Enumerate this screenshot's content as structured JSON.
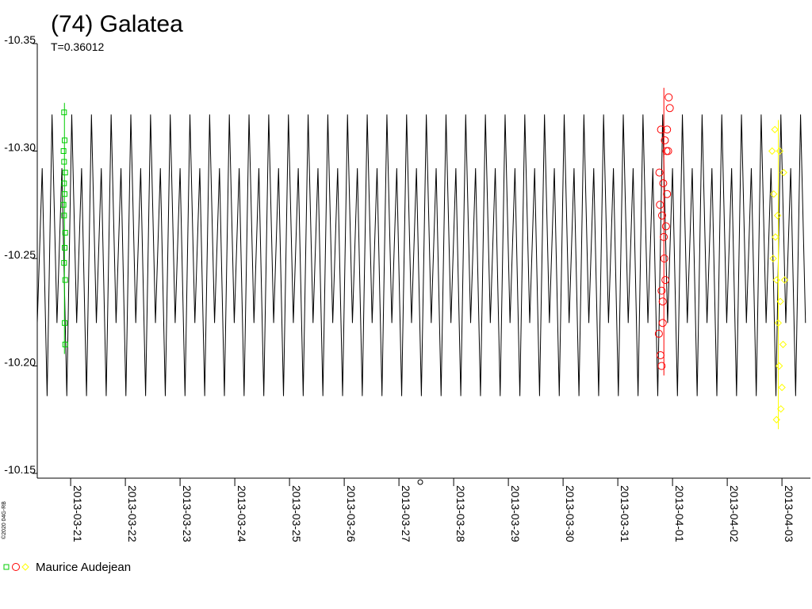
{
  "chart_data": {
    "type": "scatter",
    "title": "(74) Galatea",
    "subtitle": "T=0.36012",
    "observer": "Maurice Audejean",
    "copyright": "©2020 04G-RB",
    "xlim": [
      -0.61,
      13.52
    ],
    "ylim": [
      -10.15,
      -10.35
    ],
    "yticks": [
      -10.35,
      {
        "value": -10.3,
        "label": "-10.30"
      },
      -10.25,
      {
        "value": -10.2,
        "label": "-10.20"
      },
      -10.15
    ],
    "xticks": [
      {
        "value": 0,
        "label": "2013-03-21"
      },
      {
        "value": 1,
        "label": "2013-03-22"
      },
      {
        "value": 2,
        "label": "2013-03-23"
      },
      {
        "value": 3,
        "label": "2013-03-24"
      },
      {
        "value": 4,
        "label": "2013-03-25"
      },
      {
        "value": 5,
        "label": "2013-03-26"
      },
      {
        "value": 6,
        "label": "2013-03-27"
      },
      {
        "value": 7,
        "label": "2013-03-28"
      },
      {
        "value": 8,
        "label": "2013-03-29"
      },
      {
        "value": 9,
        "label": "2013-03-30"
      },
      {
        "value": 10,
        "label": "2013-03-31"
      },
      {
        "value": 11,
        "label": "2013-04-01"
      },
      {
        "value": 12,
        "label": "2013-04-02"
      },
      {
        "value": 13,
        "label": "2013-04-03"
      }
    ],
    "series": [
      {
        "color": "#000000",
        "marker": "none",
        "x": [
          -0.61,
          -0.52,
          -0.43,
          -0.34,
          -0.25,
          -0.16,
          -0.07,
          0.02,
          0.11,
          0.2,
          0.29,
          0.38,
          0.47,
          0.56,
          0.65,
          0.74,
          0.83,
          0.92,
          1.01,
          1.1,
          1.19,
          1.28,
          1.37,
          1.46,
          1.55,
          1.64,
          1.73,
          1.82,
          1.91,
          2,
          2.09,
          2.18,
          2.27,
          2.36,
          2.45,
          2.54,
          2.63,
          2.72,
          2.81,
          2.9,
          2.99,
          3.08,
          3.17,
          3.26,
          3.35,
          3.44,
          3.53,
          3.62,
          3.71,
          3.8,
          3.89,
          3.98,
          4.07,
          4.16,
          4.25,
          4.34,
          4.43,
          4.52,
          4.61,
          4.7,
          4.79,
          4.88,
          4.97,
          5.06,
          5.15,
          5.24,
          5.33,
          5.42,
          5.51,
          5.6,
          5.69,
          5.78,
          5.87,
          5.96,
          6.05,
          6.14,
          6.23,
          6.32,
          6.41,
          6.5,
          6.59,
          6.68,
          6.77,
          6.86,
          6.95,
          7.04,
          7.13,
          7.22,
          7.31,
          7.4,
          7.49,
          7.58,
          7.67,
          7.76,
          7.85,
          7.94,
          8.03,
          8.12,
          8.21,
          8.3,
          8.39,
          8.48,
          8.57,
          8.66,
          8.75,
          8.84,
          8.93,
          9.02,
          9.11,
          9.2,
          9.29,
          9.38,
          9.47,
          9.56,
          9.65,
          9.74,
          9.83,
          9.92,
          10.01,
          10.1,
          10.19,
          10.28,
          10.37,
          10.46,
          10.55,
          10.64,
          10.73,
          10.82,
          10.91,
          11,
          11.09,
          11.18,
          11.27,
          11.36,
          11.45,
          11.54,
          11.63,
          11.72,
          11.81,
          11.9,
          11.99,
          12.08,
          12.17,
          12.26,
          12.35,
          12.44,
          12.53,
          12.62,
          12.71,
          12.8,
          12.89,
          12.98,
          13.07,
          13.16,
          13.25,
          13.34,
          13.43
        ],
        "values": [
          -10.22,
          -10.292,
          -10.186,
          -10.317,
          -10.22,
          -10.292,
          -10.186,
          -10.317,
          -10.22,
          -10.292,
          -10.186,
          -10.317,
          -10.22,
          -10.292,
          -10.186,
          -10.317,
          -10.22,
          -10.292,
          -10.186,
          -10.317,
          -10.22,
          -10.292,
          -10.186,
          -10.317,
          -10.22,
          -10.292,
          -10.186,
          -10.317,
          -10.22,
          -10.292,
          -10.186,
          -10.317,
          -10.22,
          -10.292,
          -10.186,
          -10.317,
          -10.22,
          -10.292,
          -10.186,
          -10.317,
          -10.22,
          -10.292,
          -10.186,
          -10.317,
          -10.22,
          -10.292,
          -10.186,
          -10.317,
          -10.22,
          -10.292,
          -10.186,
          -10.317,
          -10.22,
          -10.292,
          -10.186,
          -10.317,
          -10.22,
          -10.292,
          -10.186,
          -10.317,
          -10.22,
          -10.292,
          -10.186,
          -10.317,
          -10.22,
          -10.292,
          -10.186,
          -10.317,
          -10.22,
          -10.292,
          -10.186,
          -10.317,
          -10.22,
          -10.292,
          -10.186,
          -10.317,
          -10.22,
          -10.292,
          -10.186,
          -10.317,
          -10.22,
          -10.292,
          -10.186,
          -10.317,
          -10.22,
          -10.292,
          -10.186,
          -10.317,
          -10.22,
          -10.292,
          -10.186,
          -10.317,
          -10.22,
          -10.292,
          -10.186,
          -10.317,
          -10.22,
          -10.292,
          -10.186,
          -10.317,
          -10.22,
          -10.292,
          -10.186,
          -10.317,
          -10.22,
          -10.292,
          -10.186,
          -10.317,
          -10.22,
          -10.292,
          -10.186,
          -10.317,
          -10.22,
          -10.292,
          -10.186,
          -10.317,
          -10.22,
          -10.292,
          -10.186,
          -10.317,
          -10.22,
          -10.292,
          -10.186,
          -10.317,
          -10.22,
          -10.292,
          -10.186,
          -10.317,
          -10.22,
          -10.292,
          -10.186,
          -10.317,
          -10.22,
          -10.292,
          -10.186,
          -10.317,
          -10.22,
          -10.292,
          -10.186,
          -10.317,
          -10.22,
          -10.292,
          -10.186,
          -10.317,
          -10.22,
          -10.292,
          -10.186,
          -10.317,
          -10.22,
          -10.292,
          -10.186,
          -10.317,
          -10.22,
          -10.292,
          -10.186,
          -10.317,
          -10.22
        ]
      },
      {
        "color": "#00cc00",
        "marker": "square",
        "x": [
          -0.12,
          -0.11,
          -0.13,
          -0.12,
          -0.1,
          -0.12,
          -0.11,
          -0.13,
          -0.12,
          -0.1,
          -0.11,
          -0.12,
          -0.1,
          -0.11,
          -0.1
        ],
        "values": [
          -10.318,
          -10.305,
          -10.3,
          -10.295,
          -10.29,
          -10.285,
          -10.28,
          -10.275,
          -10.27,
          -10.262,
          -10.255,
          -10.248,
          -10.24,
          -10.22,
          -10.21
        ]
      },
      {
        "color": "#ff0000",
        "marker": "circle",
        "x": [
          10.75,
          10.78,
          10.8,
          10.82,
          10.85,
          10.88,
          10.9,
          10.92,
          10.95,
          10.76,
          10.79,
          10.81,
          10.84,
          10.87,
          10.89,
          10.93,
          10.8,
          10.83,
          10.86,
          10.9,
          10.77,
          10.82
        ],
        "values": [
          -10.215,
          -10.205,
          -10.235,
          -10.22,
          -10.25,
          -10.265,
          -10.28,
          -10.3,
          -10.32,
          -10.29,
          -10.31,
          -10.27,
          -10.26,
          -10.24,
          -10.3,
          -10.325,
          -10.2,
          -10.285,
          -10.305,
          -10.31,
          -10.275,
          -10.23
        ]
      },
      {
        "color": "#ffff00",
        "marker": "diamond",
        "x": [
          12.82,
          12.85,
          12.88,
          12.9,
          12.93,
          12.95,
          12.98,
          13.0,
          13.02,
          13.05,
          12.87,
          12.92,
          12.97,
          13.03,
          12.84,
          12.9,
          12.96
        ],
        "values": [
          -10.3,
          -10.28,
          -10.26,
          -10.24,
          -10.22,
          -10.2,
          -10.18,
          -10.19,
          -10.21,
          -10.24,
          -10.31,
          -10.27,
          -10.23,
          -10.29,
          -10.25,
          -10.175,
          -10.3
        ]
      }
    ]
  }
}
